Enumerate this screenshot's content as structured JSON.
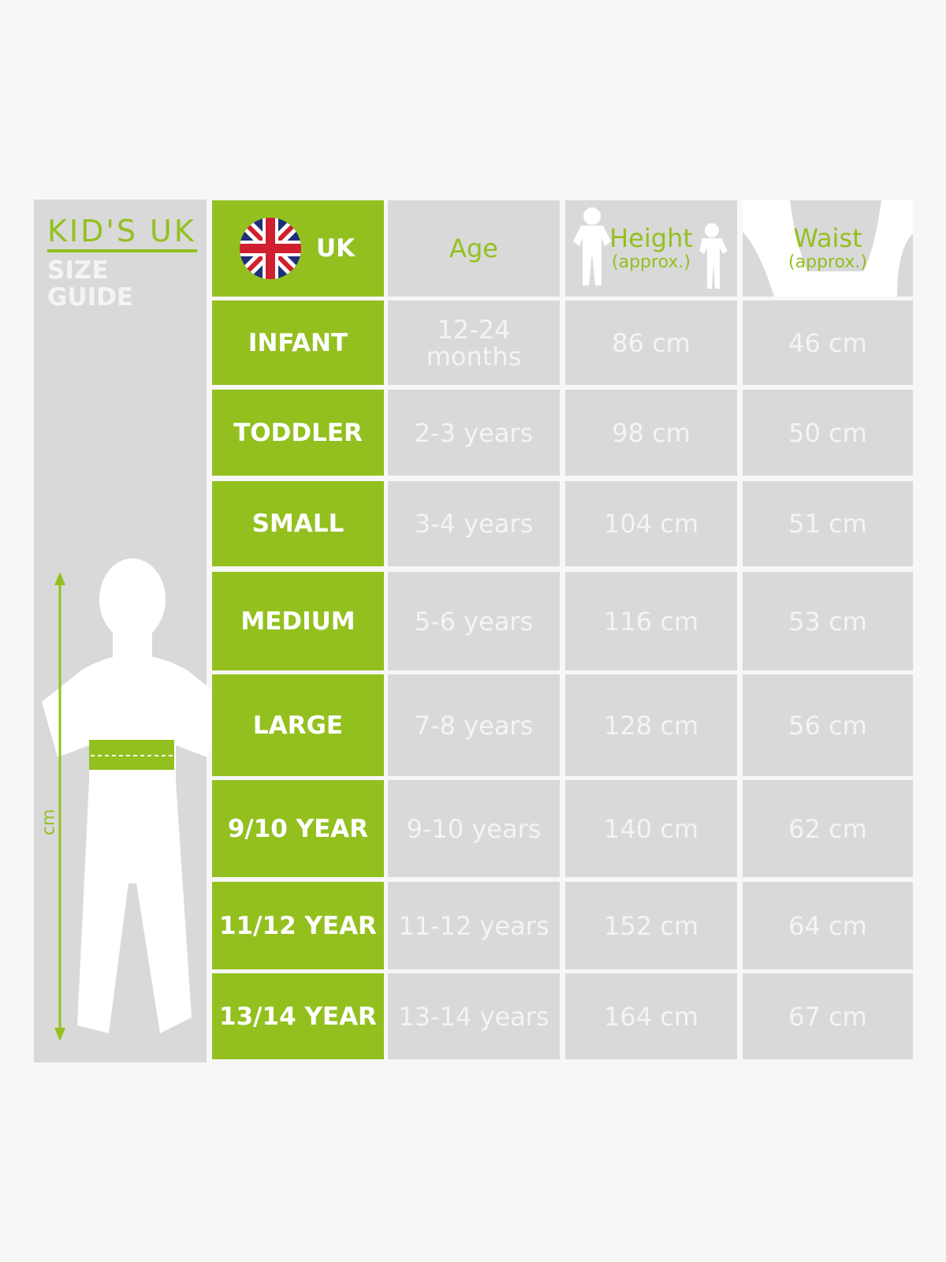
{
  "title": {
    "line1": "KID'S UK",
    "line2": "SIZE GUIDE"
  },
  "headers": {
    "uk": "UK",
    "age": "Age",
    "height": "Height",
    "height_sub": "(approx.)",
    "waist": "Waist",
    "waist_sub": "(approx.)"
  },
  "axis_label": "cm",
  "colors": {
    "accent": "#93c01f",
    "cell": "#d9d9d9",
    "background": "#f7f7f7",
    "text": "#f4f4f4"
  },
  "icons": {
    "flag": "union-jack-flag",
    "figure": "child-silhouette"
  },
  "rows": [
    {
      "size": "INFANT",
      "age": "12-24 months",
      "height": "86 cm",
      "waist": "46 cm"
    },
    {
      "size": "TODDLER",
      "age": "2-3 years",
      "height": "98 cm",
      "waist": "50 cm"
    },
    {
      "size": "SMALL",
      "age": "3-4 years",
      "height": "104 cm",
      "waist": "51 cm"
    },
    {
      "size": "MEDIUM",
      "age": "5-6 years",
      "height": "116 cm",
      "waist": "53 cm"
    },
    {
      "size": "LARGE",
      "age": "7-8 years",
      "height": "128 cm",
      "waist": "56 cm"
    },
    {
      "size": "9/10 YEAR",
      "age": "9-10 years",
      "height": "140 cm",
      "waist": "62 cm"
    },
    {
      "size": "11/12 YEAR",
      "age": "11-12 years",
      "height": "152 cm",
      "waist": "64 cm"
    },
    {
      "size": "13/14 YEAR",
      "age": "13-14 years",
      "height": "164 cm",
      "waist": "67 cm"
    }
  ]
}
